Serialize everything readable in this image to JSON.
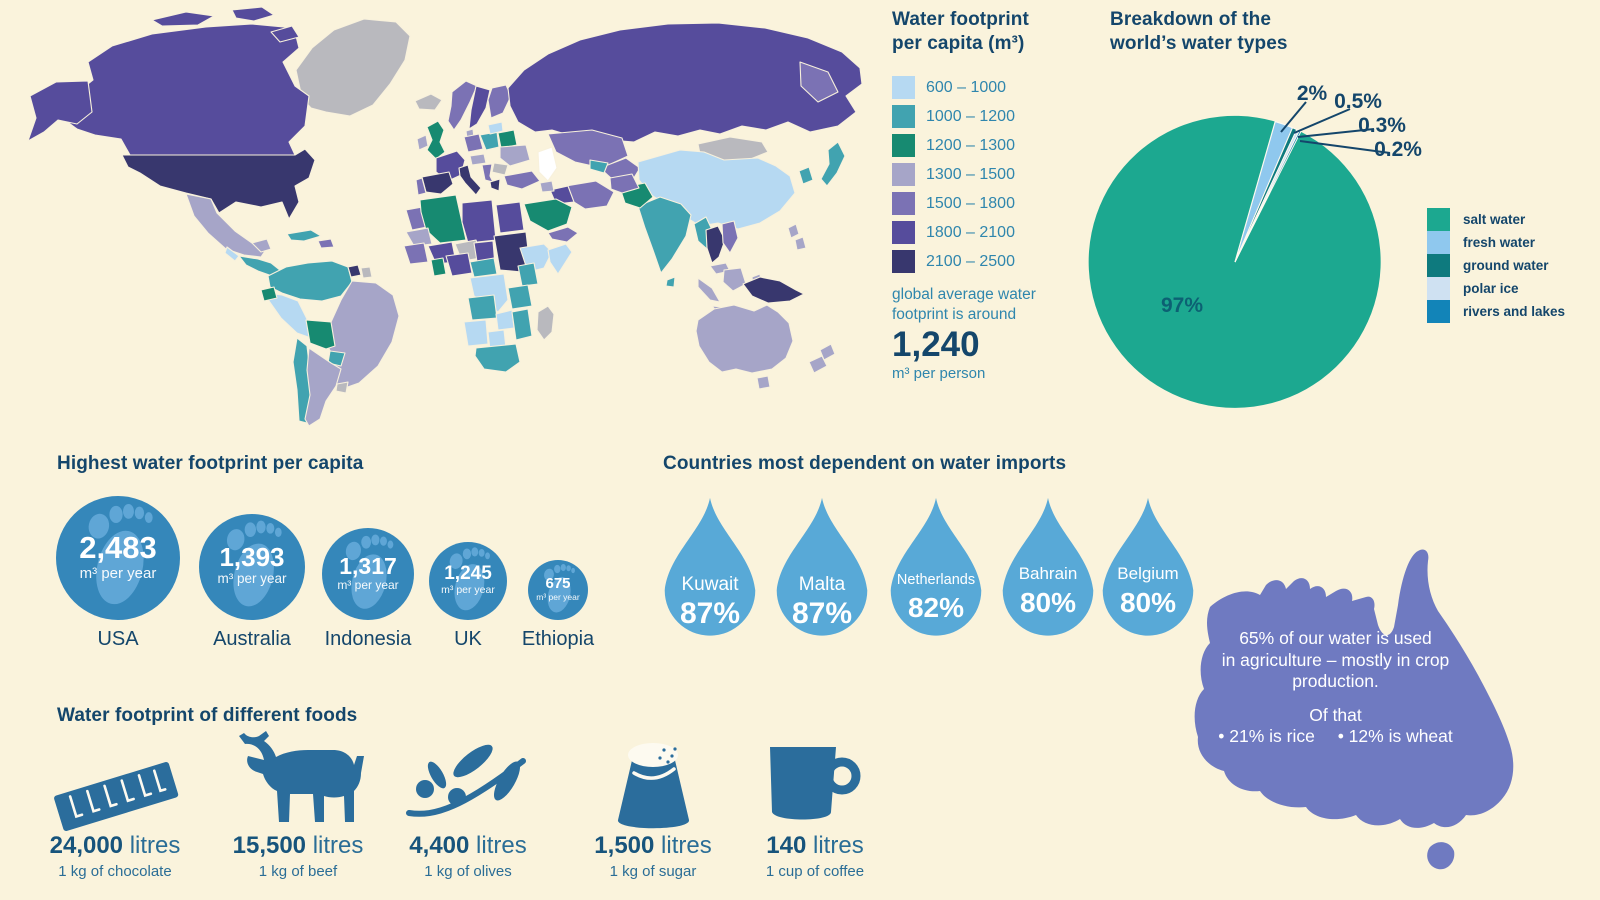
{
  "palette": {
    "bg": "#faf3dc",
    "ink": "#14466b",
    "teal_text": "#2f86ad",
    "pie_label": "#0c6173",
    "circle_blue": "#3587ba",
    "foot_blue": "#5fa6d6",
    "drop_blue": "#58a9d7",
    "australia_purple": "#6f7ac1",
    "food_blue": "#2b6d9c",
    "value_text": "#17547c",
    "caption_text": "#2a6d96",
    "map_nodata": "#b9b9be"
  },
  "map_legend": {
    "title_line1": "Water footprint",
    "title_line2": "per capita (m³)",
    "items": [
      {
        "range": "600 – 1000",
        "color": "#b6d9f2"
      },
      {
        "range": "1000 – 1200",
        "color": "#41a3b0"
      },
      {
        "range": "1200 – 1300",
        "color": "#178a71"
      },
      {
        "range": "1300 – 1500",
        "color": "#a6a5c8"
      },
      {
        "range": "1500 – 1800",
        "color": "#7b72b4"
      },
      {
        "range": "1800 – 2100",
        "color": "#564c9c"
      },
      {
        "range": "2100 – 2500",
        "color": "#38376e"
      }
    ],
    "average_note_line1": "global average water",
    "average_note_line2": "footprint is around",
    "average_value": "1,240",
    "average_unit": "m³ per person"
  },
  "pie": {
    "title_line1": "Breakdown of the",
    "title_line2": "world’s water types",
    "inside_label": "97%",
    "callouts": [
      "2%",
      "0.5%",
      "0.3%",
      "0.2%"
    ],
    "legend": [
      {
        "label": "salt water",
        "color": "#1ca890"
      },
      {
        "label": "fresh water",
        "color": "#8fc8ee"
      },
      {
        "label": "ground water",
        "color": "#0e7a7e"
      },
      {
        "label": "polar ice",
        "color": "#cfe1f2"
      },
      {
        "label": "rivers and lakes",
        "color": "#1284b8"
      }
    ]
  },
  "footprints": {
    "heading": "Highest water footprint per capita",
    "items": [
      {
        "country": "USA",
        "value": "2,483",
        "unit": "m³ per year"
      },
      {
        "country": "Australia",
        "value": "1,393",
        "unit": "m³ per year"
      },
      {
        "country": "Indonesia",
        "value": "1,317",
        "unit": "m³ per year"
      },
      {
        "country": "UK",
        "value": "1,245",
        "unit": "m³ per year"
      },
      {
        "country": "Ethiopia",
        "value": "675",
        "unit": "m³ per year"
      }
    ]
  },
  "imports": {
    "heading": "Countries most dependent on water imports",
    "items": [
      {
        "country": "Kuwait",
        "pct": "87%"
      },
      {
        "country": "Malta",
        "pct": "87%"
      },
      {
        "country": "Netherlands",
        "pct": "82%"
      },
      {
        "country": "Bahrain",
        "pct": "80%"
      },
      {
        "country": "Belgium",
        "pct": "80%"
      }
    ]
  },
  "australia_fact": {
    "line1": "65% of our water is used",
    "line2": "in agriculture – mostly in crop",
    "line3": "production.",
    "line4": "Of that",
    "rice": "• 21% is rice",
    "wheat": "• 12% is wheat"
  },
  "foods": {
    "heading": "Water footprint of different foods",
    "items": [
      {
        "value": "24,000",
        "unit": "litres",
        "caption": "1 kg of chocolate",
        "icon": "chocolate-bar-icon"
      },
      {
        "value": "15,500",
        "unit": "litres",
        "caption": "1 kg of beef",
        "icon": "cow-icon"
      },
      {
        "value": "4,400",
        "unit": "litres",
        "caption": "1 kg of olives",
        "icon": "olive-branch-icon"
      },
      {
        "value": "1,500",
        "unit": "litres",
        "caption": "1 kg of sugar",
        "icon": "sugar-bag-icon"
      },
      {
        "value": "140",
        "unit": "litres",
        "caption": "1 cup of coffee",
        "icon": "coffee-mug-icon"
      }
    ]
  },
  "chart_data": [
    {
      "type": "pie",
      "title": "Breakdown of the world’s water types",
      "labels": [
        "salt water",
        "fresh water",
        "ground water",
        "polar ice",
        "rivers and lakes"
      ],
      "values": [
        97,
        2,
        0.5,
        0.3,
        0.2
      ],
      "unit": "%",
      "colors": [
        "#1ca890",
        "#8fc8ee",
        "#0e7a7e",
        "#cfe1f2",
        "#1284b8"
      ],
      "legend_position": "right"
    },
    {
      "type": "heatmap",
      "subtype": "choropleth-world-map",
      "title": "Water footprint per capita (m³)",
      "bins": [
        "600 – 1000",
        "1000 – 1200",
        "1200 – 1300",
        "1300 – 1500",
        "1500 – 1800",
        "1800 – 2100",
        "2100 – 2500"
      ],
      "bin_colors": [
        "#b6d9f2",
        "#41a3b0",
        "#178a71",
        "#a6a5c8",
        "#7b72b4",
        "#564c9c",
        "#38376e"
      ],
      "no_data_color": "#b9b9be",
      "global_average": 1240,
      "unit": "m³ per person"
    },
    {
      "type": "scatter",
      "subtype": "proportional-circles",
      "title": "Highest water footprint per capita",
      "categories": [
        "USA",
        "Australia",
        "Indonesia",
        "UK",
        "Ethiopia"
      ],
      "values": [
        2483,
        1393,
        1317,
        1245,
        675
      ],
      "unit": "m³ per year"
    },
    {
      "type": "bar",
      "subtype": "pictogram-water-drops",
      "title": "Countries most dependent on water imports",
      "categories": [
        "Kuwait",
        "Malta",
        "Netherlands",
        "Bahrain",
        "Belgium"
      ],
      "values": [
        87,
        87,
        82,
        80,
        80
      ],
      "unit": "%"
    },
    {
      "type": "bar",
      "subtype": "pictogram-foods",
      "title": "Water footprint of different foods",
      "categories": [
        "1 kg of chocolate",
        "1 kg of beef",
        "1 kg of olives",
        "1 kg of sugar",
        "1 cup of coffee"
      ],
      "values": [
        24000,
        15500,
        4400,
        1500,
        140
      ],
      "unit": "litres"
    },
    {
      "type": "table",
      "subtype": "annotation",
      "title": "Australia water use",
      "rows": [
        [
          "agriculture share",
          "65%"
        ],
        [
          "of that: rice",
          "21%"
        ],
        [
          "of that: wheat",
          "12%"
        ]
      ]
    }
  ]
}
